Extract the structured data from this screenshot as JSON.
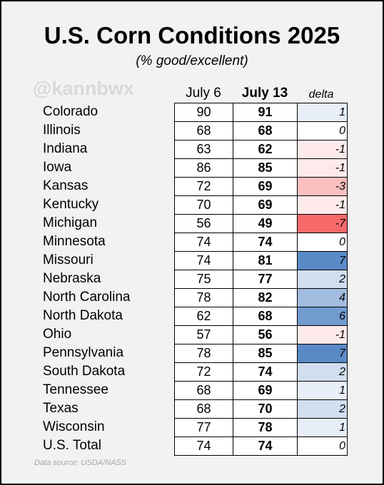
{
  "header": {
    "title": "U.S. Corn Conditions 2025",
    "subtitle": "(% good/excellent)",
    "watermark": "@kannbwx"
  },
  "footer": {
    "source": "Data source: USDA/NASS"
  },
  "colors": {
    "delta_negative": "#f8696b",
    "delta_positive": "#5a8ac6",
    "delta_zero": "#ffffff",
    "background": "#f2f2f2"
  },
  "chart_data": {
    "type": "table",
    "title": "U.S. Corn Conditions 2025",
    "subtitle": "(% good/excellent)",
    "columns": [
      "July 6",
      "July 13",
      "delta"
    ],
    "rows": [
      {
        "state": "Colorado",
        "jul6": "90",
        "jul13": "91",
        "delta": "1"
      },
      {
        "state": "Illinois",
        "jul6": "68",
        "jul13": "68",
        "delta": "0"
      },
      {
        "state": "Indiana",
        "jul6": "63",
        "jul13": "62",
        "delta": "-1"
      },
      {
        "state": "Iowa",
        "jul6": "86",
        "jul13": "85",
        "delta": "-1"
      },
      {
        "state": "Kansas",
        "jul6": "72",
        "jul13": "69",
        "delta": "-3"
      },
      {
        "state": "Kentucky",
        "jul6": "70",
        "jul13": "69",
        "delta": "-1"
      },
      {
        "state": "Michigan",
        "jul6": "56",
        "jul13": "49",
        "delta": "-7"
      },
      {
        "state": "Minnesota",
        "jul6": "74",
        "jul13": "74",
        "delta": "0"
      },
      {
        "state": "Missouri",
        "jul6": "74",
        "jul13": "81",
        "delta": "7"
      },
      {
        "state": "Nebraska",
        "jul6": "75",
        "jul13": "77",
        "delta": "2"
      },
      {
        "state": "North Carolina",
        "jul6": "78",
        "jul13": "82",
        "delta": "4"
      },
      {
        "state": "North Dakota",
        "jul6": "62",
        "jul13": "68",
        "delta": "6"
      },
      {
        "state": "Ohio",
        "jul6": "57",
        "jul13": "56",
        "delta": "-1"
      },
      {
        "state": "Pennsylvania",
        "jul6": "78",
        "jul13": "85",
        "delta": "7"
      },
      {
        "state": "South Dakota",
        "jul6": "72",
        "jul13": "74",
        "delta": "2"
      },
      {
        "state": "Tennessee",
        "jul6": "68",
        "jul13": "69",
        "delta": "1"
      },
      {
        "state": "Texas",
        "jul6": "68",
        "jul13": "70",
        "delta": "2"
      },
      {
        "state": "Wisconsin",
        "jul6": "77",
        "jul13": "78",
        "delta": "1"
      },
      {
        "state": "U.S. Total",
        "jul6": "74",
        "jul13": "74",
        "delta": "0"
      }
    ]
  }
}
